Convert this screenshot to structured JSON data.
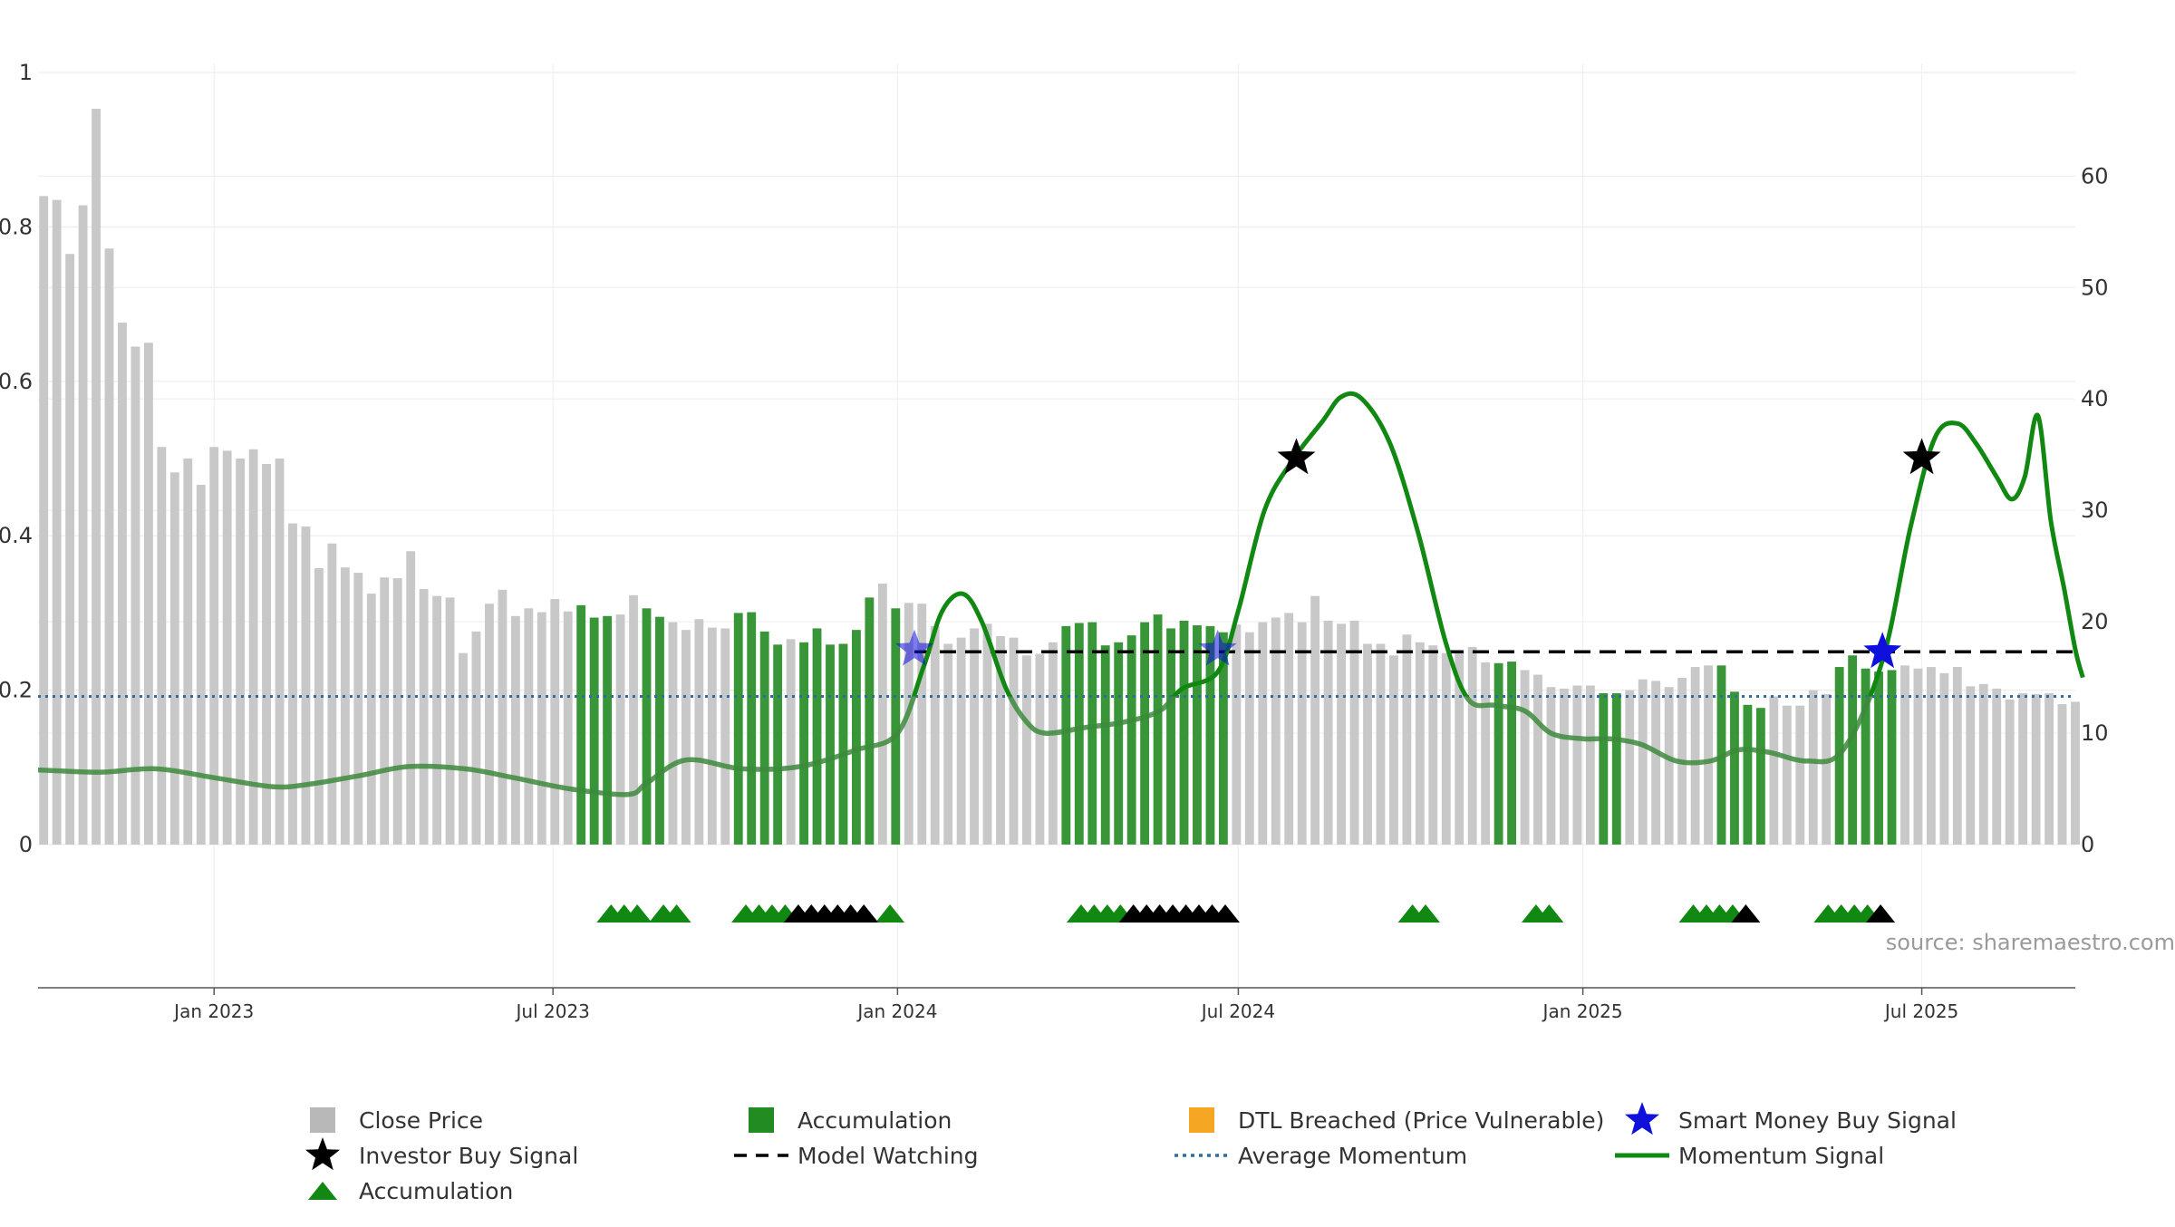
{
  "source_text": "source: sharemaestro.com",
  "chart_data": {
    "type": "bar",
    "title": "",
    "xlabel": "",
    "ylabel": "",
    "y_left": {
      "min": 0,
      "max": 1,
      "ticks": [
        0,
        0.2,
        0.4,
        0.6,
        0.8,
        1
      ],
      "tick_labels": [
        "0",
        "0.2",
        "0.4",
        "0.6",
        "0.8",
        "1"
      ]
    },
    "y_right": {
      "min": 0,
      "max": 69.3,
      "ticks": [
        0,
        10,
        20,
        30,
        40,
        50,
        60
      ],
      "tick_labels": [
        "0",
        "10",
        "20",
        "30",
        "40",
        "50",
        "60"
      ]
    },
    "x_axis": {
      "start": "2022-09-29",
      "end": "2025-09-21",
      "ticks": [
        "2023-01-01",
        "2023-07-01",
        "2024-01-01",
        "2024-07-01",
        "2025-01-01",
        "2025-07-01"
      ],
      "tick_labels": [
        "Jan 2023",
        "Jul 2023",
        "Jan 2024",
        "Jul 2024",
        "Jan 2025",
        "Jul 2025"
      ]
    },
    "grid": true,
    "legend_position": "bottom-center",
    "colors": {
      "close": "#c8c8c8",
      "accumulation": "#228b22",
      "dtl": "#f5a623",
      "smart": "#1010dd",
      "investor": "#000000",
      "model": "#000000",
      "avg": "#2e6da4",
      "momentum": "#118811"
    },
    "series": [
      {
        "name": "Close Price",
        "first_date": "2022-10-02",
        "interval_days": 7,
        "values": [
          0.84,
          0.835,
          0.765,
          0.828,
          0.953,
          0.772,
          0.676,
          0.645,
          0.65,
          0.515,
          0.482,
          0.5,
          0.466,
          0.515,
          0.51,
          0.5,
          0.512,
          0.493,
          0.5,
          0.416,
          0.412,
          0.358,
          0.39,
          0.359,
          0.352,
          0.325,
          0.346,
          0.345,
          0.38,
          0.331,
          0.322,
          0.32,
          0.248,
          0.276,
          0.312,
          0.33,
          0.296,
          0.306,
          0.301,
          0.318,
          0.302,
          0.31,
          0.294,
          0.296,
          0.298,
          0.323,
          0.306,
          0.295,
          0.288,
          0.278,
          0.292,
          0.281,
          0.28,
          0.3,
          0.301,
          0.276,
          0.259,
          0.266,
          0.262,
          0.28,
          0.259,
          0.26,
          0.278,
          0.32,
          0.338,
          0.306,
          0.313,
          0.312,
          0.283,
          0.26,
          0.268,
          0.28,
          0.286,
          0.27,
          0.268,
          0.245,
          0.247,
          0.262,
          0.283,
          0.287,
          0.288,
          0.258,
          0.262,
          0.271,
          0.288,
          0.298,
          0.28,
          0.29,
          0.284,
          0.283,
          0.275,
          0.285,
          0.275,
          0.288,
          0.294,
          0.3,
          0.288,
          0.322,
          0.29,
          0.286,
          0.29,
          0.26,
          0.26,
          0.245,
          0.272,
          0.262,
          0.258,
          0.248,
          0.248,
          0.256,
          0.236,
          0.235,
          0.237,
          0.226,
          0.22,
          0.204,
          0.202,
          0.206,
          0.206,
          0.196,
          0.196,
          0.2,
          0.214,
          0.212,
          0.204,
          0.216,
          0.23,
          0.232,
          0.232,
          0.198,
          0.181,
          0.177,
          0.192,
          0.18,
          0.18,
          0.2,
          0.195,
          0.23,
          0.245,
          0.228,
          0.224,
          0.226,
          0.232,
          0.228,
          0.23,
          0.222,
          0.23,
          0.205,
          0.208,
          0.202,
          0.188,
          0.196,
          0.195,
          0.196,
          0.182,
          0.185
        ]
      },
      {
        "name": "Accumulation",
        "bar_ranges": [
          [
            41,
            43
          ],
          [
            46,
            47
          ],
          [
            53,
            56
          ],
          [
            58,
            63
          ],
          [
            65,
            65
          ],
          [
            78,
            90
          ],
          [
            111,
            112
          ],
          [
            119,
            120
          ],
          [
            128,
            131
          ],
          [
            137,
            141
          ]
        ]
      },
      {
        "name": "Accumulation",
        "marker": "triangle-up",
        "color": "green",
        "dates": [
          "2023-08-01",
          "2023-08-08",
          "2023-08-15",
          "2023-08-29",
          "2023-09-05",
          "2023-10-12",
          "2023-10-19",
          "2023-10-26",
          "2023-11-02",
          "2023-12-28",
          "2024-04-08",
          "2024-04-15",
          "2024-04-22",
          "2024-04-29",
          "2024-10-02",
          "2024-10-09",
          "2024-12-07",
          "2024-12-14",
          "2025-03-01",
          "2025-03-08",
          "2025-03-15",
          "2025-03-22",
          "2025-05-12",
          "2025-05-19",
          "2025-05-26",
          "2025-06-02"
        ]
      },
      {
        "name": "Accumulation",
        "marker": "triangle-up",
        "color": "black",
        "dates": [
          "2023-11-09",
          "2023-11-16",
          "2023-11-23",
          "2023-11-30",
          "2023-12-07",
          "2023-12-14",
          "2024-05-06",
          "2024-05-13",
          "2024-05-20",
          "2024-05-27",
          "2024-06-03",
          "2024-06-10",
          "2024-06-17",
          "2024-06-24",
          "2025-03-29",
          "2025-06-09"
        ]
      },
      {
        "name": "DTL Breached (Price Vulnerable)",
        "dates": []
      },
      {
        "name": "Smart Money Buy Signal",
        "points": [
          {
            "x": "2024-01-10",
            "y": 17.5
          },
          {
            "x": "2024-06-20",
            "y": 17.5
          },
          {
            "x": "2025-06-10",
            "y": 17.3
          }
        ]
      },
      {
        "name": "Investor Buy Signal",
        "points": [
          {
            "x": "2024-08-01",
            "y": 34.7
          },
          {
            "x": "2025-07-01",
            "y": 34.7
          }
        ]
      },
      {
        "name": "Model Watching",
        "from": "2024-01-10",
        "to": "2025-09-21",
        "y": 17.3
      },
      {
        "name": "Average Momentum",
        "y": 13.3
      },
      {
        "name": "Momentum Signal",
        "points": [
          [
            "2022-09-29",
            6.7
          ],
          [
            "2022-11-01",
            6.5
          ],
          [
            "2022-12-01",
            6.8
          ],
          [
            "2023-01-01",
            6
          ],
          [
            "2023-02-01",
            5.2
          ],
          [
            "2023-02-20",
            5.4
          ],
          [
            "2023-03-20",
            6.2
          ],
          [
            "2023-04-15",
            7
          ],
          [
            "2023-05-15",
            6.8
          ],
          [
            "2023-06-10",
            6
          ],
          [
            "2023-07-10",
            5
          ],
          [
            "2023-08-10",
            4.5
          ],
          [
            "2023-08-20",
            5.5
          ],
          [
            "2023-09-10",
            7.6
          ],
          [
            "2023-10-10",
            6.8
          ],
          [
            "2023-11-10",
            7
          ],
          [
            "2023-12-10",
            8.5
          ],
          [
            "2024-01-01",
            10
          ],
          [
            "2024-01-15",
            16
          ],
          [
            "2024-01-25",
            21
          ],
          [
            "2024-02-05",
            22.5
          ],
          [
            "2024-02-15",
            20
          ],
          [
            "2024-02-28",
            14
          ],
          [
            "2024-03-10",
            11
          ],
          [
            "2024-03-20",
            10
          ],
          [
            "2024-04-10",
            10.5
          ],
          [
            "2024-05-01",
            11
          ],
          [
            "2024-05-20",
            12
          ],
          [
            "2024-06-01",
            14
          ],
          [
            "2024-06-20",
            15.5
          ],
          [
            "2024-07-01",
            21
          ],
          [
            "2024-07-15",
            30
          ],
          [
            "2024-07-30",
            34.5
          ],
          [
            "2024-08-15",
            38
          ],
          [
            "2024-08-25",
            40.2
          ],
          [
            "2024-09-05",
            40
          ],
          [
            "2024-09-20",
            36
          ],
          [
            "2024-10-05",
            28
          ],
          [
            "2024-10-20",
            18
          ],
          [
            "2024-11-01",
            13
          ],
          [
            "2024-11-15",
            12.5
          ],
          [
            "2024-12-01",
            12
          ],
          [
            "2024-12-15",
            10
          ],
          [
            "2025-01-01",
            9.5
          ],
          [
            "2025-01-15",
            9.5
          ],
          [
            "2025-02-01",
            9
          ],
          [
            "2025-02-20",
            7.5
          ],
          [
            "2025-03-10",
            7.5
          ],
          [
            "2025-03-25",
            8.5
          ],
          [
            "2025-04-10",
            8.3
          ],
          [
            "2025-05-01",
            7.5
          ],
          [
            "2025-05-20",
            8.5
          ],
          [
            "2025-06-10",
            16.5
          ],
          [
            "2025-06-25",
            28.5
          ],
          [
            "2025-07-08",
            36.5
          ],
          [
            "2025-07-20",
            37.8
          ],
          [
            "2025-07-30",
            36
          ],
          [
            "2025-08-10",
            33
          ],
          [
            "2025-08-18",
            31
          ],
          [
            "2025-08-25",
            33
          ],
          [
            "2025-09-01",
            38.5
          ],
          [
            "2025-09-08",
            29
          ],
          [
            "2025-09-15",
            23
          ],
          [
            "2025-09-21",
            17.5
          ],
          [
            "2025-09-25",
            15
          ]
        ]
      }
    ]
  },
  "legend": [
    {
      "label": "Close Price",
      "symbol": "square",
      "color": "#b8b8b8"
    },
    {
      "label": "Accumulation",
      "symbol": "square",
      "color": "#228b22"
    },
    {
      "label": "DTL Breached (Price Vulnerable)",
      "symbol": "square",
      "color": "#f5a623"
    },
    {
      "label": "Smart Money Buy Signal",
      "symbol": "star",
      "color": "#1010dd"
    },
    {
      "label": "Investor Buy Signal",
      "symbol": "star",
      "color": "#000000"
    },
    {
      "label": "Model Watching",
      "symbol": "dash",
      "color": "#000000"
    },
    {
      "label": "Average Momentum",
      "symbol": "dot",
      "color": "#2e6da4"
    },
    {
      "label": "Momentum Signal",
      "symbol": "line",
      "color": "#118811"
    },
    {
      "label": "Accumulation",
      "symbol": "triangle",
      "color": "#118811"
    }
  ]
}
